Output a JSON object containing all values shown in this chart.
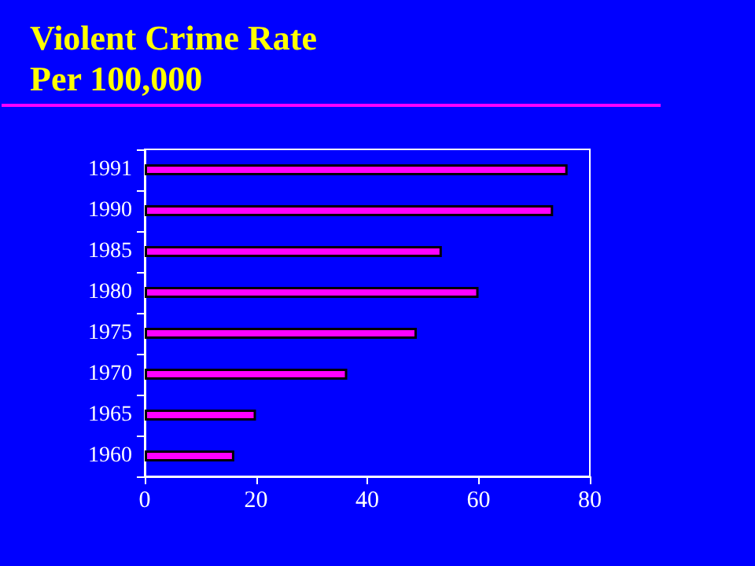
{
  "chart_data": {
    "type": "bar",
    "orientation": "horizontal",
    "title": "Violent Crime Rate\nPer 100,000",
    "categories": [
      "1991",
      "1990",
      "1985",
      "1980",
      "1975",
      "1970",
      "1965",
      "1960"
    ],
    "values": [
      76,
      73.4,
      53.4,
      60,
      48.9,
      36.4,
      20,
      16.1
    ],
    "color": "#ff00ff",
    "xlim": [
      0,
      80
    ],
    "xticks": [
      0,
      20,
      40,
      60,
      80
    ],
    "grid": false
  }
}
